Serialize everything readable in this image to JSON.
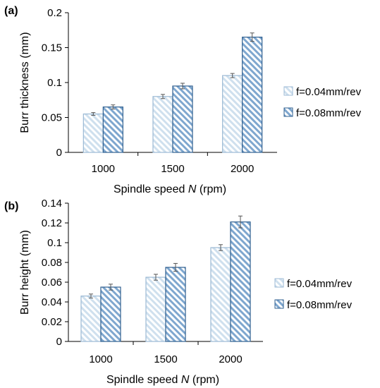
{
  "chart_data": [
    {
      "type": "bar",
      "panel_label": "(a)",
      "categories": [
        "1000",
        "1500",
        "2000"
      ],
      "xlabel_prefix": "Spindle speed ",
      "xlabel_var": "N",
      "xlabel_suffix": " (rpm)",
      "ylabel": "Burr thickness (mm)",
      "ylim": [
        0,
        0.2
      ],
      "yticks": [
        0,
        0.05,
        0.1,
        0.15,
        0.2
      ],
      "ytick_labels": [
        "0",
        "0.05",
        "0.1",
        "0.15",
        "0.2"
      ],
      "grid": false,
      "legend_position": "right",
      "series": [
        {
          "name": "f=0.04mm/rev",
          "values": [
            0.055,
            0.08,
            0.11
          ],
          "errors": [
            0.002,
            0.003,
            0.003
          ],
          "fill": "#cfe0ee",
          "stroke": "#9bb9d4"
        },
        {
          "name": "f=0.08mm/rev",
          "values": [
            0.065,
            0.095,
            0.165
          ],
          "errors": [
            0.003,
            0.004,
            0.006
          ],
          "fill": "#7fa7cf",
          "stroke": "#2f5f8f"
        }
      ]
    },
    {
      "type": "bar",
      "panel_label": "(b)",
      "categories": [
        "1000",
        "1500",
        "2000"
      ],
      "xlabel_prefix": "Spindle speed ",
      "xlabel_var": "N",
      "xlabel_suffix": " (rpm)",
      "ylabel": "Burr height (mm)",
      "ylim": [
        0,
        0.14
      ],
      "yticks": [
        0,
        0.02,
        0.04,
        0.06,
        0.08,
        0.1,
        0.12,
        0.14
      ],
      "ytick_labels": [
        "0",
        "0.02",
        "0.04",
        "0.06",
        "0.08",
        "0.1",
        "0.12",
        "0.14"
      ],
      "grid": false,
      "legend_position": "right",
      "series": [
        {
          "name": "f=0.04mm/rev",
          "values": [
            0.046,
            0.065,
            0.095
          ],
          "errors": [
            0.002,
            0.003,
            0.003
          ],
          "fill": "#cfe0ee",
          "stroke": "#9bb9d4"
        },
        {
          "name": "f=0.08mm/rev",
          "values": [
            0.055,
            0.075,
            0.121
          ],
          "errors": [
            0.003,
            0.004,
            0.006
          ],
          "fill": "#7fa7cf",
          "stroke": "#2f5f8f"
        }
      ]
    }
  ]
}
